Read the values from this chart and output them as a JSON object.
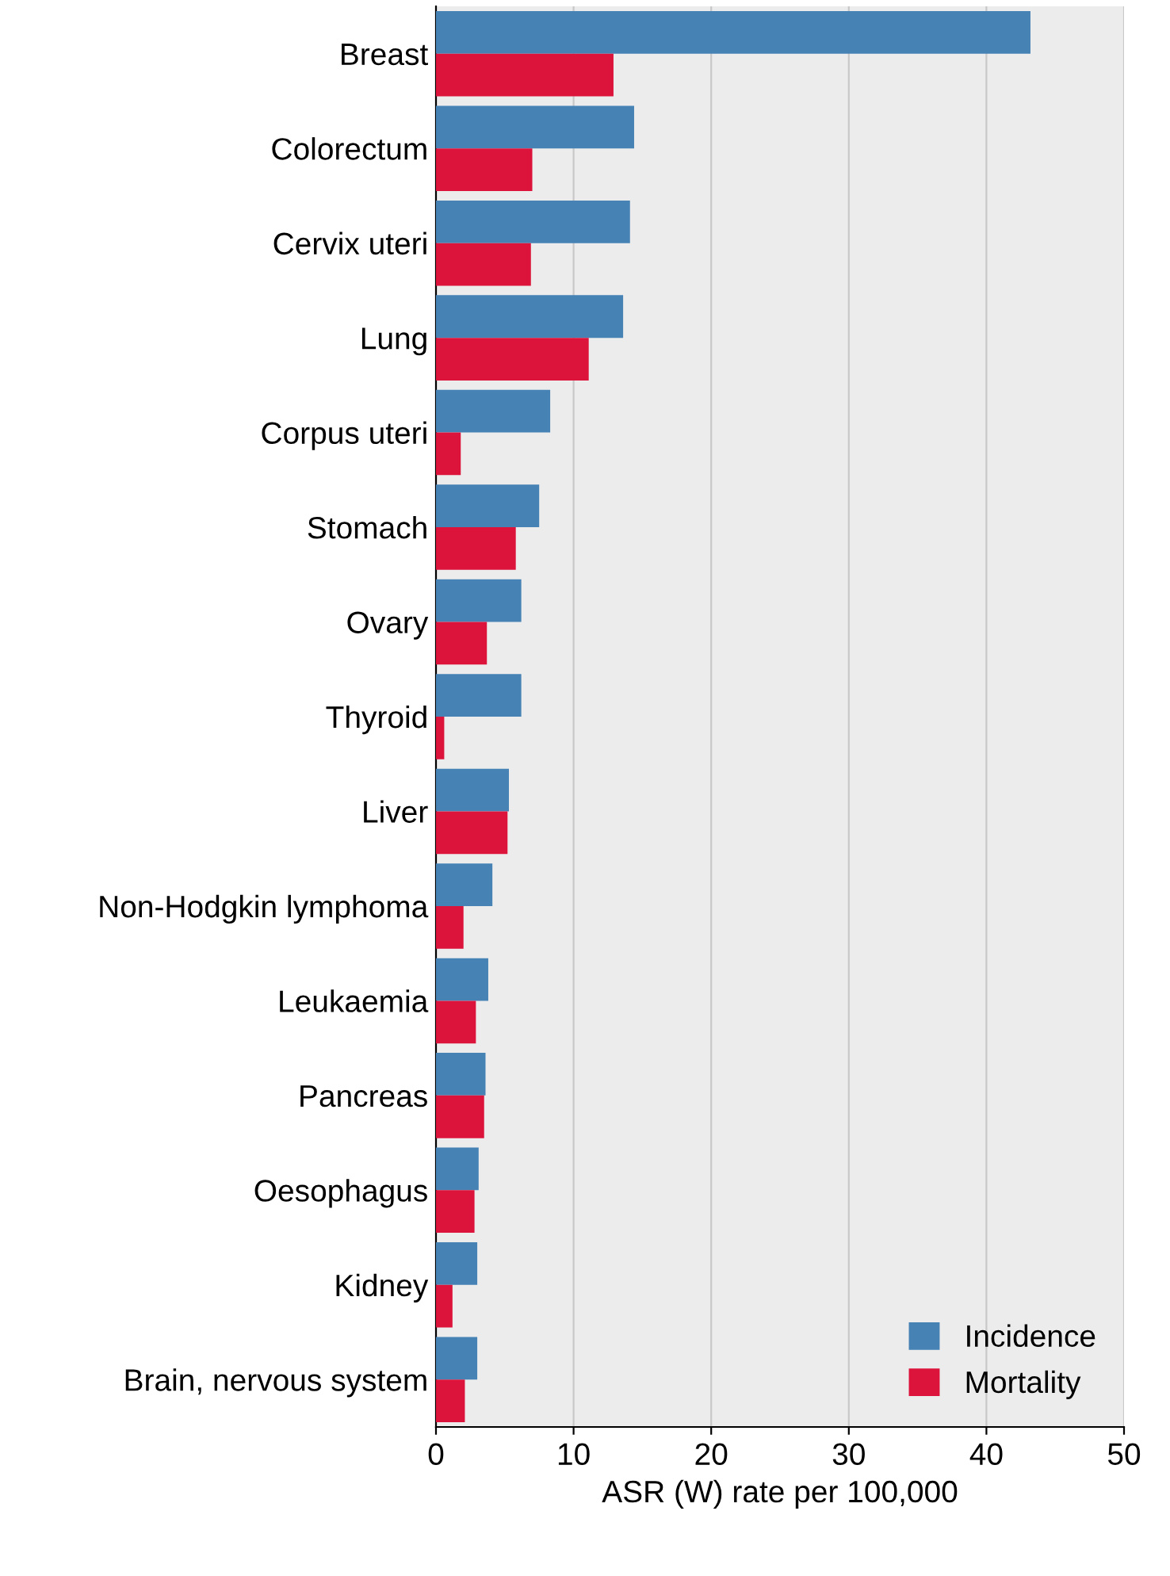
{
  "chart_data": {
    "type": "bar",
    "orientation": "horizontal",
    "xlabel": "ASR (W) rate per 100,000",
    "categories": [
      "Breast",
      "Colorectum",
      "Cervix uteri",
      "Lung",
      "Corpus uteri",
      "Stomach",
      "Ovary",
      "Thyroid",
      "Liver",
      "Non-Hodgkin lymphoma",
      "Leukaemia",
      "Pancreas",
      "Oesophagus",
      "Kidney",
      "Brain, nervous system"
    ],
    "series": [
      {
        "name": "Incidence",
        "color": "#4682b4",
        "values": [
          43.2,
          14.4,
          14.1,
          13.6,
          8.3,
          7.5,
          6.2,
          6.2,
          5.3,
          4.1,
          3.8,
          3.6,
          3.1,
          3.0,
          3.0
        ]
      },
      {
        "name": "Mortality",
        "color": "#dc143c",
        "values": [
          12.9,
          7.0,
          6.9,
          11.1,
          1.8,
          5.8,
          3.7,
          0.6,
          5.2,
          2.0,
          2.9,
          3.5,
          2.8,
          1.2,
          2.1
        ]
      }
    ],
    "xlim": [
      0,
      50
    ],
    "xticks": [
      0,
      10,
      20,
      30,
      40,
      50
    ],
    "grid": "x",
    "legend": "bottom right"
  }
}
